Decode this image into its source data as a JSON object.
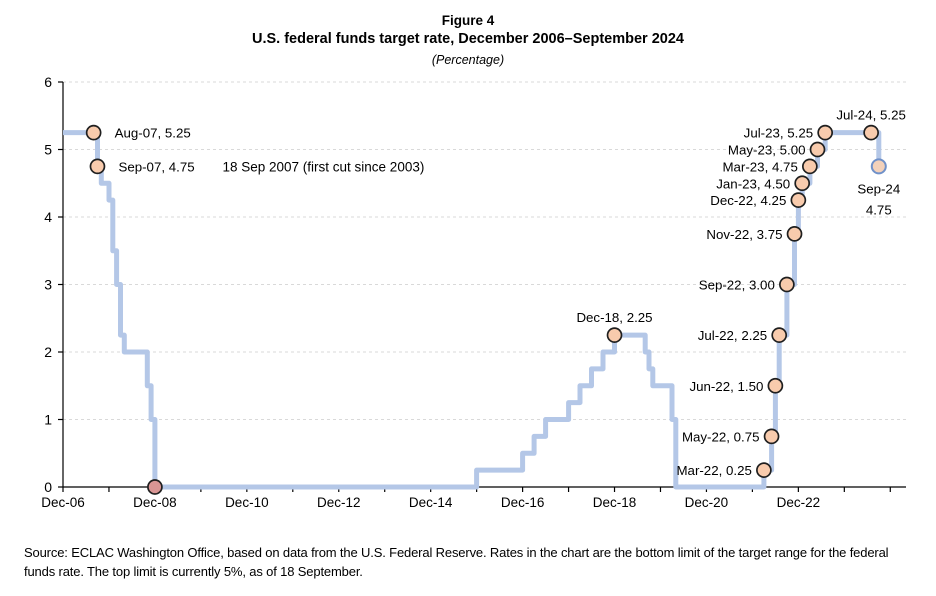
{
  "figure": {
    "title": "Figure 4",
    "subtitle": "U.S. federal funds target rate, December 2006–September 2024",
    "unit_note": "(Percentage)",
    "source": "Source: ECLAC Washington Office, based on data from the U.S. Federal Reserve. Rates in the chart are the bottom limit of the target range for the federal funds rate. The top limit is currently 5%, as of 18 September."
  },
  "chart_data": {
    "type": "line",
    "title": "Figure 4",
    "subtitle": "U.S. federal funds target rate, December 2006–September 2024",
    "ylabel": "",
    "xlabel": "",
    "unit": "Percentage",
    "ylim": [
      0,
      6
    ],
    "yticks": [
      0,
      1,
      2,
      3,
      4,
      5,
      6
    ],
    "xtick_labels": [
      "Dec-06",
      "Dec-08",
      "Dec-10",
      "Dec-12",
      "Dec-14",
      "Dec-16",
      "Dec-18",
      "Dec-20",
      "Dec-22"
    ],
    "grid": "horizontal-dashed",
    "legend": "none",
    "series_name": "U.S. federal funds target rate (bottom limit of target range)",
    "series_step_changes": [
      {
        "month": "Dec-06",
        "value": 5.25
      },
      {
        "month": "Sep-07",
        "value": 4.75
      },
      {
        "month": "Oct-07",
        "value": 4.5
      },
      {
        "month": "Dec-07",
        "value": 4.25
      },
      {
        "month": "Jan-08",
        "value": 3.5
      },
      {
        "month": "Feb-08",
        "value": 3.0
      },
      {
        "month": "Mar-08",
        "value": 2.25
      },
      {
        "month": "Apr-08",
        "value": 2.0
      },
      {
        "month": "Oct-08",
        "value": 1.5
      },
      {
        "month": "Nov-08",
        "value": 1.0
      },
      {
        "month": "Dec-08",
        "value": 0.0
      },
      {
        "month": "Dec-15",
        "value": 0.25
      },
      {
        "month": "Dec-16",
        "value": 0.5
      },
      {
        "month": "Mar-17",
        "value": 0.75
      },
      {
        "month": "Jun-17",
        "value": 1.0
      },
      {
        "month": "Dec-17",
        "value": 1.25
      },
      {
        "month": "Mar-18",
        "value": 1.5
      },
      {
        "month": "Jun-18",
        "value": 1.75
      },
      {
        "month": "Sep-18",
        "value": 2.0
      },
      {
        "month": "Dec-18",
        "value": 2.25
      },
      {
        "month": "Aug-19",
        "value": 2.0
      },
      {
        "month": "Sep-19",
        "value": 1.75
      },
      {
        "month": "Oct-19",
        "value": 1.5
      },
      {
        "month": "Mar-20",
        "value": 1.0
      },
      {
        "month": "Apr-20",
        "value": 0.0
      },
      {
        "month": "Mar-22",
        "value": 0.25
      },
      {
        "month": "May-22",
        "value": 0.75
      },
      {
        "month": "Jun-22",
        "value": 1.5
      },
      {
        "month": "Jul-22",
        "value": 2.25
      },
      {
        "month": "Sep-22",
        "value": 3.0
      },
      {
        "month": "Nov-22",
        "value": 3.75
      },
      {
        "month": "Dec-22",
        "value": 4.25
      },
      {
        "month": "Jan-23",
        "value": 4.5
      },
      {
        "month": "Mar-23",
        "value": 4.75
      },
      {
        "month": "May-23",
        "value": 5.0
      },
      {
        "month": "Jul-23",
        "value": 5.25
      },
      {
        "month": "Sep-24",
        "value": 4.75
      }
    ],
    "markers": [
      {
        "month": "Aug-07",
        "value": 5.25,
        "label": "Aug-07, 5.25",
        "placement": "right",
        "style": "peach"
      },
      {
        "month": "Sep-07",
        "value": 4.75,
        "label": "Sep-07, 4.75",
        "placement": "right",
        "style": "peach"
      },
      {
        "month": "Dec-08",
        "value": 0.0,
        "label": "",
        "placement": "none",
        "style": "pink"
      },
      {
        "month": "Dec-18",
        "value": 2.25,
        "label": "Dec-18, 2.25",
        "placement": "above",
        "style": "peach"
      },
      {
        "month": "Mar-22",
        "value": 0.25,
        "label": "Mar-22, 0.25",
        "placement": "left",
        "style": "peach"
      },
      {
        "month": "May-22",
        "value": 0.75,
        "label": "May-22, 0.75",
        "placement": "left",
        "style": "peach"
      },
      {
        "month": "Jun-22",
        "value": 1.5,
        "label": "Jun-22, 1.50",
        "placement": "left",
        "style": "peach"
      },
      {
        "month": "Jul-22",
        "value": 2.25,
        "label": "Jul-22, 2.25",
        "placement": "left",
        "style": "peach"
      },
      {
        "month": "Sep-22",
        "value": 3.0,
        "label": "Sep-22, 3.00",
        "placement": "left",
        "style": "peach"
      },
      {
        "month": "Nov-22",
        "value": 3.75,
        "label": "Nov-22, 3.75",
        "placement": "left",
        "style": "peach"
      },
      {
        "month": "Dec-22",
        "value": 4.25,
        "label": "Dec-22, 4.25",
        "placement": "left",
        "style": "peach"
      },
      {
        "month": "Jan-23",
        "value": 4.5,
        "label": "Jan-23, 4.50",
        "placement": "left",
        "style": "peach"
      },
      {
        "month": "Mar-23",
        "value": 4.75,
        "label": "Mar-23, 4.75",
        "placement": "left",
        "style": "peach"
      },
      {
        "month": "May-23",
        "value": 5.0,
        "label": "May-23, 5.00",
        "placement": "left",
        "style": "peach"
      },
      {
        "month": "Jul-23",
        "value": 5.25,
        "label": "Jul-23, 5.25",
        "placement": "left",
        "style": "peach"
      },
      {
        "month": "Jul-24",
        "value": 5.25,
        "label": "Jul-24, 5.25",
        "placement": "above",
        "style": "peach"
      },
      {
        "month": "Sep-24",
        "value": 4.75,
        "label": "Sep-24\n4.75",
        "placement": "below",
        "style": "peach-blue"
      }
    ],
    "annotation": {
      "text": "18 Sep 2007 (first cut since 2003)",
      "attached_to": "Sep-07"
    },
    "colors": {
      "line": "#b4c7e7",
      "grid": "#d9d9d9",
      "axis": "#000000",
      "marker_peach_fill": "#f8cbad",
      "marker_peach_stroke": "#1f1f1f",
      "marker_pink_fill": "#d99594",
      "marker_pink_stroke": "#1f1f1f",
      "marker_blue_outline_fill": "#f3d1ba",
      "marker_blue_outline_stroke": "#7091c9",
      "background": "#ffffff"
    }
  }
}
